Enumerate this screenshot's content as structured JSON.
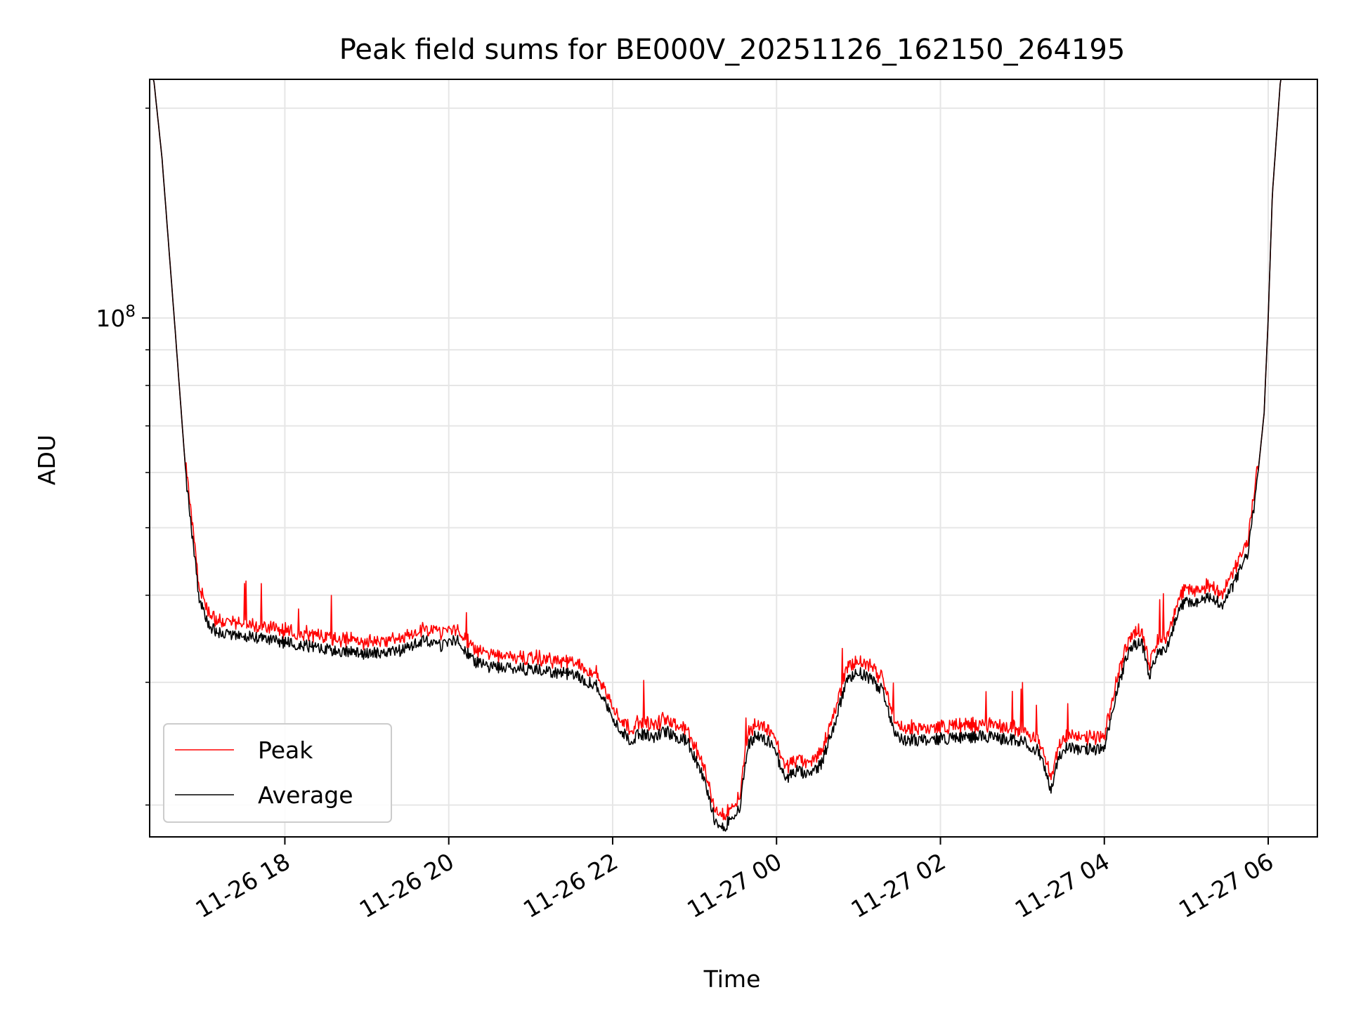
{
  "chart_data": {
    "type": "line",
    "title": "Peak field sums for BE000V_20251126_162150_264195",
    "xlabel": "Time",
    "ylabel": "ADU",
    "y_scale": "log",
    "ylim": [
      18000000,
      220000000
    ],
    "y_major_ticks": [
      {
        "value": 100000000,
        "base": "10",
        "exp": "8"
      }
    ],
    "y_minor_ticks": [
      20000000,
      30000000,
      40000000,
      50000000,
      60000000,
      70000000,
      80000000,
      90000000,
      200000000
    ],
    "x_range_hours": [
      16.35,
      30.6
    ],
    "x_ticks": [
      {
        "hour": 18,
        "label": "11-26 18"
      },
      {
        "hour": 20,
        "label": "11-26 20"
      },
      {
        "hour": 22,
        "label": "11-26 22"
      },
      {
        "hour": 24,
        "label": "11-27 00"
      },
      {
        "hour": 26,
        "label": "11-27 02"
      },
      {
        "hour": 28,
        "label": "11-27 04"
      },
      {
        "hour": 30,
        "label": "11-27 06"
      }
    ],
    "grid": true,
    "legend_position": "lower-left",
    "series": [
      {
        "name": "Peak",
        "color": "#ff0000",
        "peak_ratio": 1.03
      },
      {
        "name": "Average",
        "color": "#000000"
      }
    ],
    "average_series_hours": [
      16.35,
      16.4,
      16.5,
      16.65,
      16.8,
      16.95,
      17.05,
      17.15,
      17.25,
      17.35,
      17.45,
      17.6,
      17.8,
      18.0,
      18.3,
      18.6,
      19.0,
      19.4,
      19.7,
      19.9,
      20.1,
      20.3,
      20.5,
      20.6,
      21.0,
      21.5,
      21.8,
      21.9,
      22.0,
      22.2,
      22.35,
      22.5,
      22.65,
      22.75,
      22.9,
      23.1,
      23.25,
      23.35,
      23.45,
      23.55,
      23.65,
      23.75,
      23.85,
      23.95,
      24.1,
      24.25,
      24.4,
      24.55,
      24.7,
      24.85,
      25.0,
      25.1,
      25.3,
      25.45,
      25.55,
      25.65,
      25.8,
      26.0,
      26.5,
      27.0,
      27.2,
      27.35,
      27.45,
      27.55,
      27.7,
      27.85,
      28.0,
      28.15,
      28.3,
      28.45,
      28.55,
      28.65,
      28.75,
      28.8,
      28.95,
      29.05,
      29.15,
      29.3,
      29.45,
      29.6,
      29.75,
      29.85,
      29.95,
      30.0,
      30.05,
      30.15,
      30.3,
      30.45,
      30.6
    ],
    "average_series_adu": [
      220000000,
      220000000,
      170000000,
      100000000,
      58000000,
      40000000,
      36500000,
      35600000,
      35300000,
      35200000,
      35000000,
      34800000,
      34500000,
      34200000,
      33800000,
      33300000,
      33000000,
      33300000,
      34500000,
      33800000,
      34600000,
      32200000,
      31500000,
      31500000,
      31300000,
      30800000,
      29700000,
      28300000,
      26500000,
      24800000,
      25300000,
      25000000,
      25600000,
      25000000,
      24800000,
      22000000,
      19000000,
      18500000,
      19200000,
      19800000,
      24400000,
      25200000,
      24800000,
      24600000,
      21800000,
      22400000,
      22000000,
      23000000,
      26000000,
      30000000,
      31000000,
      30600000,
      29200000,
      25100000,
      24700000,
      24800000,
      24800000,
      24900000,
      25100000,
      24700000,
      23900000,
      21000000,
      23600000,
      24300000,
      23900000,
      24100000,
      24000000,
      29000000,
      33500000,
      34500000,
      30500000,
      33000000,
      33300000,
      35000000,
      38800000,
      39300000,
      39000000,
      39800000,
      38800000,
      42000000,
      46000000,
      56000000,
      73000000,
      100000000,
      150000000,
      220000000,
      220000000,
      220000000,
      220000000
    ]
  }
}
